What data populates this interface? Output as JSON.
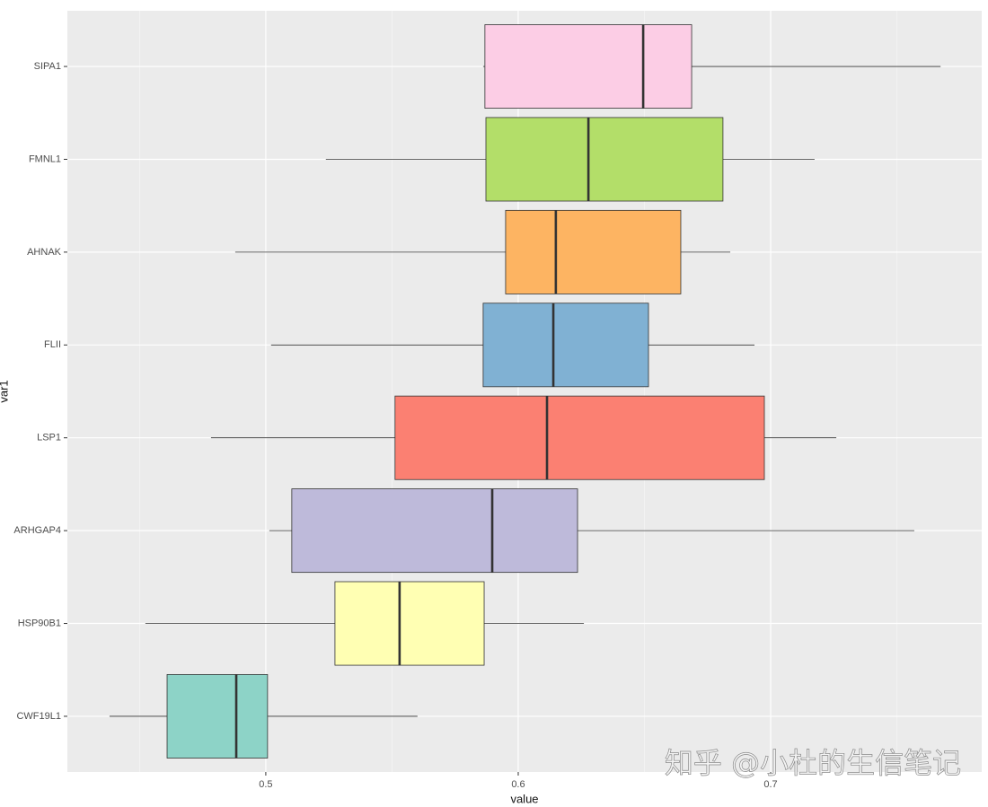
{
  "chart_data": {
    "type": "boxplot",
    "orientation": "horizontal",
    "x_label": "value",
    "y_label": "var1",
    "annotation": "知乎 @小杜的生信笔记",
    "categories": [
      "CWF19L1",
      "HSP90B1",
      "ARHGAP4",
      "LSP1",
      "FLII",
      "AHNAK",
      "FMNL1",
      "SIPA1"
    ],
    "colors": [
      "#8DD3C7",
      "#FFFFB3",
      "#BEBADA",
      "#FB8072",
      "#80B1D3",
      "#FDB462",
      "#B3DE69",
      "#FCCDE5"
    ],
    "min": [
      0.4381,
      0.4523,
      0.5014,
      0.4783,
      0.5021,
      0.4879,
      0.5238,
      0.5861
    ],
    "q1": [
      0.4609,
      0.5274,
      0.5103,
      0.5512,
      0.5861,
      0.595,
      0.5872,
      0.5868
    ],
    "median": [
      0.4883,
      0.553,
      0.5897,
      0.6114,
      0.6139,
      0.6149,
      0.6278,
      0.6495
    ],
    "q3": [
      0.5007,
      0.5865,
      0.6235,
      0.6975,
      0.6516,
      0.6644,
      0.6811,
      0.6687
    ],
    "max": [
      0.5601,
      0.626,
      0.7569,
      0.726,
      0.6936,
      0.684,
      0.7174,
      0.7673
    ],
    "xlim": [
      0.4214,
      0.7836
    ],
    "xticks": [
      0.5,
      0.6,
      0.7
    ],
    "xminorticks": [
      0.45,
      0.55,
      0.65,
      0.75
    ],
    "grid": true
  }
}
